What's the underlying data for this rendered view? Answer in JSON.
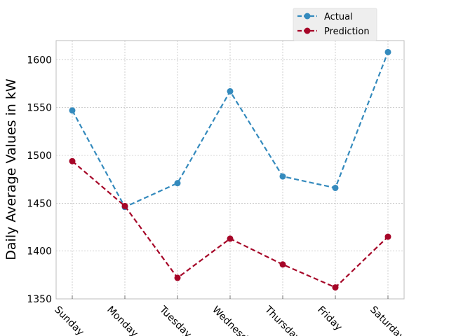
{
  "chart_data": {
    "type": "line",
    "title": "",
    "xlabel": "",
    "ylabel": "Daily Average Values in kW",
    "categories": [
      "Sunday",
      "Monday",
      "Tuesday",
      "Wednesday",
      "Thursday",
      "Friday",
      "Saturday"
    ],
    "ylim": [
      1350,
      1620
    ],
    "yticks": [
      1350,
      1400,
      1450,
      1500,
      1550,
      1600
    ],
    "grid": true,
    "legend_position": "top-right",
    "series": [
      {
        "name": "Actual",
        "color": "#348abd",
        "line_style": "dashed",
        "marker": "circle",
        "values": [
          1547,
          1446,
          1471,
          1567,
          1478,
          1466,
          1608
        ]
      },
      {
        "name": "Prediction",
        "color": "#a60628",
        "line_style": "dashed",
        "marker": "circle",
        "values": [
          1494,
          1447,
          1372,
          1413,
          1386,
          1362,
          1415
        ]
      }
    ]
  }
}
